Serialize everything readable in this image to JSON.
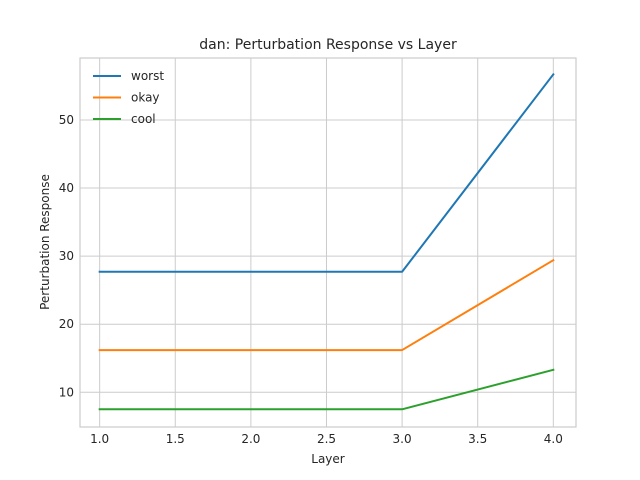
{
  "chart_data": {
    "type": "line",
    "title": "dan: Perturbation Response vs Layer",
    "xlabel": "Layer",
    "ylabel": "Perturbation Response",
    "x": [
      1.0,
      2.0,
      3.0,
      4.0
    ],
    "xlim": [
      0.87,
      4.15
    ],
    "ylim": [
      4.9,
      59.1
    ],
    "xticks": [
      1.0,
      1.5,
      2.0,
      2.5,
      3.0,
      3.5,
      4.0
    ],
    "xtick_labels": [
      "1.0",
      "1.5",
      "2.0",
      "2.5",
      "3.0",
      "3.5",
      "4.0"
    ],
    "yticks": [
      10,
      20,
      30,
      40,
      50
    ],
    "ytick_labels": [
      "10",
      "20",
      "30",
      "40",
      "50"
    ],
    "grid": true,
    "legend_position": "top-left",
    "series": [
      {
        "name": "worst",
        "color": "#1f77b4",
        "values": [
          27.7,
          27.7,
          27.7,
          56.7
        ]
      },
      {
        "name": "okay",
        "color": "#ff7f0e",
        "values": [
          16.2,
          16.2,
          16.2,
          29.4
        ]
      },
      {
        "name": "cool",
        "color": "#2ca02c",
        "values": [
          7.5,
          7.5,
          7.5,
          13.3
        ]
      }
    ]
  }
}
